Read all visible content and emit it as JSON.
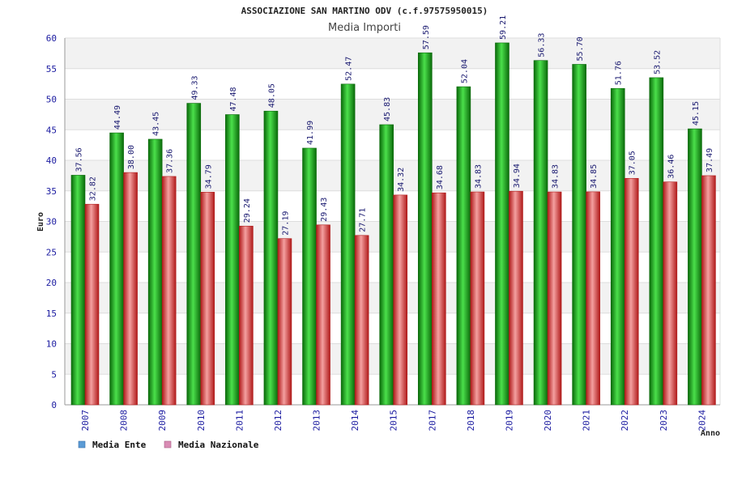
{
  "colors": {
    "ente": "#1fa51f",
    "ente_dark": "#0a6a0a",
    "ente_light": "#4be04b",
    "nazionale": "#e34444",
    "nazionale_dark": "#b01a1a",
    "nazionale_light": "#f4a0a0",
    "legend_ente": "#5b9bd5",
    "legend_nazionale": "#d98cb4",
    "band": "#f2f2f2",
    "grid": "#dddddd",
    "axis": "#999999"
  },
  "chart_data": {
    "type": "bar",
    "title": "ASSOCIAZIONE SAN MARTINO ODV (c.f.97575950015)",
    "subtitle": "Media Importi",
    "xlabel": "Anno",
    "ylabel": "Euro",
    "ylim": [
      0,
      60
    ],
    "yticks": [
      0,
      5,
      10,
      15,
      20,
      25,
      30,
      35,
      40,
      45,
      50,
      55,
      60
    ],
    "grid": true,
    "legend_position": "bottom-left",
    "categories": [
      "2007",
      "2008",
      "2009",
      "2010",
      "2011",
      "2012",
      "2013",
      "2014",
      "2015",
      "2017",
      "2018",
      "2019",
      "2020",
      "2021",
      "2022",
      "2023",
      "2024"
    ],
    "series": [
      {
        "name": "Media Ente",
        "values": [
          37.56,
          44.49,
          43.45,
          49.33,
          47.48,
          48.05,
          41.99,
          52.47,
          45.83,
          57.59,
          52.04,
          59.21,
          56.33,
          55.7,
          51.76,
          53.52,
          45.15
        ],
        "labels": [
          "37.56",
          "44.49",
          "43.45",
          "49.33",
          "47.48",
          "48.05",
          "41.99",
          "52.47",
          "45.83",
          "57.59",
          "52.04",
          "59.21",
          "56.33",
          "55.70",
          "51.76",
          "53.52",
          "45.15"
        ]
      },
      {
        "name": "Media Nazionale",
        "values": [
          32.82,
          38.0,
          37.36,
          34.79,
          29.24,
          27.19,
          29.43,
          27.71,
          34.32,
          34.68,
          34.83,
          34.94,
          34.83,
          34.85,
          37.05,
          36.46,
          37.49
        ],
        "labels": [
          "32.82",
          "38.00",
          "37.36",
          "34.79",
          "29.24",
          "27.19",
          "29.43",
          "27.71",
          "34.32",
          "34.68",
          "34.83",
          "34.94",
          "34.83",
          "34.85",
          "37.05",
          "36.46",
          "37.49"
        ]
      }
    ]
  }
}
